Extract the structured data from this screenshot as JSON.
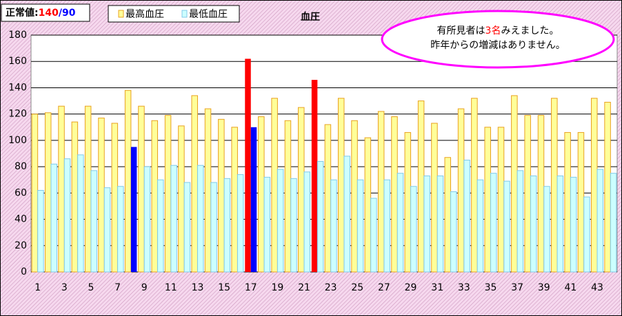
{
  "chart_data": {
    "type": "bar",
    "title": "血圧",
    "normal_value": {
      "label": "正常値:",
      "high": "140",
      "separator": "/",
      "low": "90"
    },
    "annotation": {
      "line1": [
        "有所見者は",
        "3名",
        "みえました。"
      ],
      "line2": "昨年からの増減はありません。"
    },
    "categories": [
      1,
      null,
      3,
      null,
      5,
      null,
      7,
      null,
      9,
      null,
      11,
      null,
      13,
      null,
      15,
      null,
      17,
      null,
      19,
      null,
      21,
      null,
      23,
      null,
      25,
      null,
      27,
      null,
      29,
      null,
      31,
      null,
      33,
      null,
      35,
      null,
      37,
      null,
      39,
      null,
      41,
      null,
      43,
      null
    ],
    "series": [
      {
        "name": "最高血圧",
        "color": "#ffff99",
        "edge": "#e8a020",
        "values": [
          120,
          121,
          126,
          114,
          126,
          117,
          113,
          138,
          126,
          115,
          119,
          111,
          134,
          124,
          116,
          110,
          162,
          118,
          132,
          115,
          125,
          146,
          112,
          132,
          115,
          102,
          122,
          118,
          106,
          130,
          113,
          87,
          124,
          132,
          110,
          110,
          134,
          119,
          119,
          132,
          106,
          106,
          132,
          129
        ],
        "colors": [
          "#ffff99",
          "#ffff99",
          "#ffff99",
          "#ffff99",
          "#ffff99",
          "#ffff99",
          "#ffff99",
          "#ffff99",
          "#ffff99",
          "#ffff99",
          "#ffff99",
          "#ffff99",
          "#ffff99",
          "#ffff99",
          "#ffff99",
          "#ffff99",
          "#ff0000",
          "#ffff99",
          "#ffff99",
          "#ffff99",
          "#ffff99",
          "#ff0000",
          "#ffff99",
          "#ffff99",
          "#ffff99",
          "#ffff99",
          "#ffff99",
          "#ffff99",
          "#ffff99",
          "#ffff99",
          "#ffff99",
          "#ffff99",
          "#ffff99",
          "#ffff99",
          "#ffff99",
          "#ffff99",
          "#ffff99",
          "#ffff99",
          "#ffff99",
          "#ffff99",
          "#ffff99",
          "#ffff99",
          "#ffff99",
          "#ffff99"
        ]
      },
      {
        "name": "最低血圧",
        "color": "#ccffff",
        "edge": "#80c8e8",
        "values": [
          62,
          82,
          86,
          89,
          77,
          64,
          65,
          95,
          80,
          70,
          81,
          68,
          81,
          68,
          71,
          74,
          110,
          72,
          78,
          71,
          76,
          84,
          70,
          88,
          70,
          56,
          70,
          75,
          65,
          73,
          73,
          61,
          85,
          70,
          75,
          69,
          77,
          73,
          65,
          73,
          72,
          57,
          78,
          75
        ],
        "colors": [
          "#ccffff",
          "#ccffff",
          "#ccffff",
          "#ccffff",
          "#ccffff",
          "#ccffff",
          "#ccffff",
          "#0000ff",
          "#ccffff",
          "#ccffff",
          "#ccffff",
          "#ccffff",
          "#ccffff",
          "#ccffff",
          "#ccffff",
          "#ccffff",
          "#0000ff",
          "#ccffff",
          "#ccffff",
          "#ccffff",
          "#ccffff",
          "#ccffff",
          "#ccffff",
          "#ccffff",
          "#ccffff",
          "#ccffff",
          "#ccffff",
          "#ccffff",
          "#ccffff",
          "#ccffff",
          "#ccffff",
          "#ccffff",
          "#ccffff",
          "#ccffff",
          "#ccffff",
          "#ccffff",
          "#ccffff",
          "#ccffff",
          "#ccffff",
          "#ccffff",
          "#ccffff",
          "#ccffff",
          "#ccffff",
          "#ccffff"
        ]
      }
    ],
    "ylim": [
      0,
      180
    ],
    "yticks": [
      0,
      20,
      40,
      60,
      80,
      100,
      120,
      140,
      160,
      180
    ],
    "grid": true
  }
}
